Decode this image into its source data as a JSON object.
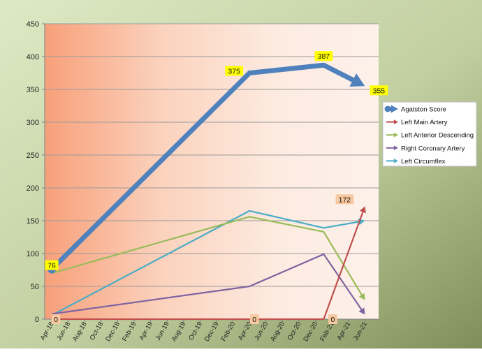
{
  "chart_data": {
    "type": "line",
    "xlabel": "",
    "ylabel": "",
    "ylim": [
      0,
      450
    ],
    "yticks": [
      0,
      50,
      100,
      150,
      200,
      250,
      300,
      350,
      400,
      450
    ],
    "x_tick_labels": [
      "Apr-18",
      "Jun-18",
      "Aug-18",
      "Oct-18",
      "Dec-18",
      "Feb-19",
      "Apr-19",
      "Jun-19",
      "Aug-19",
      "Oct-19",
      "Dec-19",
      "Feb-20",
      "Apr-20",
      "Jun-20",
      "Aug-20",
      "Oct-20",
      "Dec-20",
      "Feb-21",
      "Apr-21",
      "Jun-21"
    ],
    "grid": true,
    "legend_position": "right",
    "series": [
      {
        "name": "Agatston Score",
        "color": "#4F81BD",
        "points": [
          {
            "x": "Apr-18",
            "y": 76,
            "label": "76"
          },
          {
            "x": "Apr-20",
            "y": 375,
            "label": "375"
          },
          {
            "x": "Jan-21",
            "y": 387,
            "label": "387"
          },
          {
            "x": "Jun-21",
            "y": 355,
            "label": "355"
          }
        ]
      },
      {
        "name": "Left Main Artery",
        "color": "#C0504D",
        "points": [
          {
            "x": "Apr-18",
            "y": 0,
            "label": "0"
          },
          {
            "x": "Apr-20",
            "y": 0,
            "label": "0"
          },
          {
            "x": "Jan-21",
            "y": 0,
            "label": "0"
          },
          {
            "x": "Jun-21",
            "y": 172,
            "label": "172"
          }
        ]
      },
      {
        "name": "Left Anterior Descending",
        "color": "#9BBB59",
        "points": [
          {
            "x": "Apr-18",
            "y": 70
          },
          {
            "x": "Apr-20",
            "y": 156
          },
          {
            "x": "Jan-21",
            "y": 133
          },
          {
            "x": "Jun-21",
            "y": 29
          }
        ]
      },
      {
        "name": "Right Coronary Artery",
        "color": "#8064A2",
        "points": [
          {
            "x": "Apr-18",
            "y": 8
          },
          {
            "x": "Apr-20",
            "y": 50
          },
          {
            "x": "Jan-21",
            "y": 99
          },
          {
            "x": "Jun-21",
            "y": 7
          }
        ]
      },
      {
        "name": "Left Circumflex",
        "color": "#4BACC6",
        "points": [
          {
            "x": "Apr-18",
            "y": 6
          },
          {
            "x": "Apr-20",
            "y": 165
          },
          {
            "x": "Jan-21",
            "y": 139
          },
          {
            "x": "Jun-21",
            "y": 150
          }
        ]
      }
    ]
  }
}
